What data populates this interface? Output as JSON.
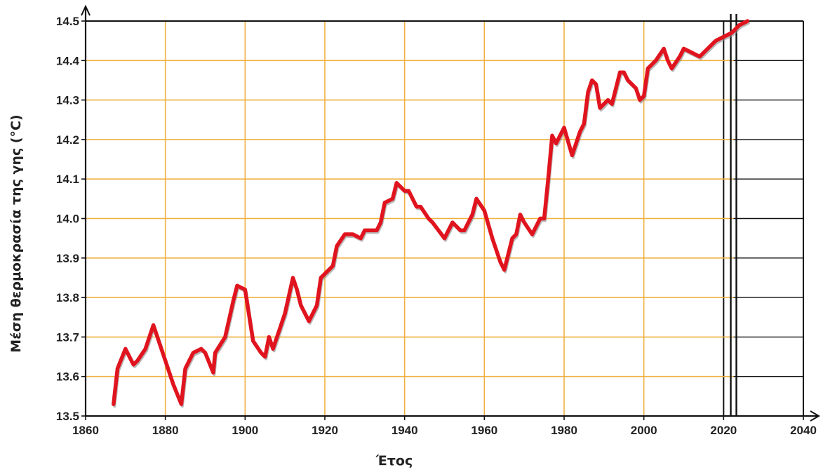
{
  "chart_data": {
    "type": "line",
    "title": "",
    "xlabel": "Έτος",
    "ylabel": "Μέση θερμοκρασία της γης (°C)",
    "xlim": [
      1860,
      2040
    ],
    "ylim": [
      13.5,
      14.5
    ],
    "grid": true,
    "x_ticks": [
      1860,
      1880,
      1900,
      1920,
      1940,
      1960,
      1980,
      2000,
      2020,
      2040
    ],
    "y_ticks": [
      13.5,
      13.6,
      13.7,
      13.8,
      13.9,
      14.0,
      14.1,
      14.2,
      14.3,
      14.4,
      14.5
    ],
    "x_tick_labels": [
      "1860",
      "1880",
      "1900",
      "1920",
      "1940",
      "1960",
      "1980",
      "2000",
      "2020",
      "2040"
    ],
    "y_tick_labels": [
      "13.5",
      "13.6",
      "13.7",
      "13.8",
      "13.9",
      "14.0",
      "14.1",
      "14.2",
      "14.3",
      "14.4",
      "14.5"
    ],
    "colors": {
      "line": "#e0141e",
      "shadow": "#8a8a8a",
      "grid": "#f0b040",
      "axis": "#111111"
    },
    "series": [
      {
        "x": [
          1867,
          1868,
          1870,
          1872,
          1873,
          1875,
          1877,
          1878,
          1880,
          1882,
          1884,
          1885,
          1887,
          1889,
          1890,
          1892,
          1892.5,
          1895,
          1897,
          1898,
          1900,
          1902,
          1904,
          1905,
          1906,
          1907,
          1910,
          1912,
          1913,
          1914,
          1916,
          1918,
          1919,
          1921,
          1922,
          1923,
          1925,
          1927,
          1929,
          1930,
          1933,
          1934,
          1935,
          1937,
          1938,
          1940,
          1941,
          1943,
          1944,
          1946,
          1947,
          1950,
          1952,
          1954,
          1955,
          1957,
          1958,
          1960,
          1962,
          1964,
          1965,
          1967,
          1968,
          1969,
          1970,
          1972,
          1973,
          1974,
          1975,
          1976,
          1977,
          1978,
          1980,
          1982,
          1984,
          1985,
          1986,
          1987,
          1988,
          1989,
          1991,
          1992,
          1994,
          1995,
          1996,
          1998,
          1999,
          2000,
          2001,
          2003,
          2005,
          2006,
          2007,
          2009,
          2010,
          2012,
          2014,
          2016,
          2018,
          2020,
          2022,
          2024,
          2026
        ],
        "y": [
          13.53,
          13.62,
          13.67,
          13.63,
          13.64,
          13.67,
          13.73,
          13.7,
          13.64,
          13.58,
          13.53,
          13.62,
          13.66,
          13.67,
          13.66,
          13.61,
          13.66,
          13.7,
          13.79,
          13.83,
          13.82,
          13.69,
          13.66,
          13.65,
          13.7,
          13.67,
          13.76,
          13.85,
          13.82,
          13.78,
          13.74,
          13.78,
          13.85,
          13.87,
          13.88,
          13.93,
          13.96,
          13.96,
          13.95,
          13.97,
          13.97,
          13.99,
          14.04,
          14.05,
          14.09,
          14.07,
          14.07,
          14.03,
          14.03,
          14.0,
          13.99,
          13.95,
          13.99,
          13.97,
          13.97,
          14.01,
          14.05,
          14.02,
          13.95,
          13.89,
          13.87,
          13.95,
          13.96,
          14.01,
          13.99,
          13.96,
          13.98,
          14.0,
          14.0,
          14.1,
          14.21,
          14.19,
          14.23,
          14.16,
          14.22,
          14.24,
          14.32,
          14.35,
          14.34,
          14.28,
          14.3,
          14.29,
          14.37,
          14.37,
          14.35,
          14.33,
          14.3,
          14.31,
          14.38,
          14.4,
          14.43,
          14.4,
          14.38,
          14.41,
          14.43,
          14.42,
          14.41,
          14.43,
          14.45,
          14.46,
          14.47,
          14.49,
          14.5
        ]
      }
    ]
  }
}
